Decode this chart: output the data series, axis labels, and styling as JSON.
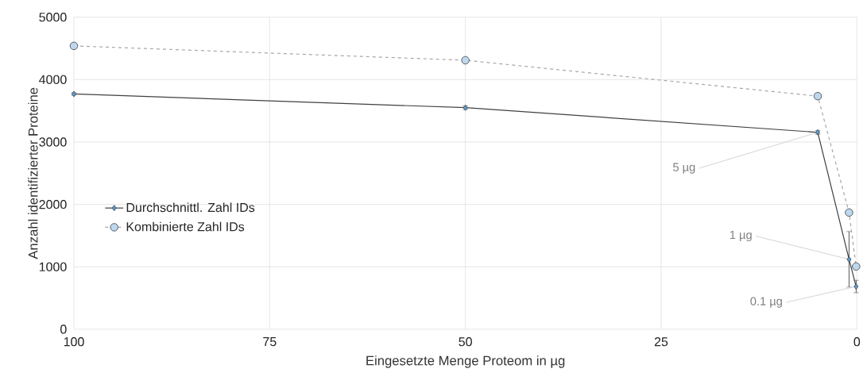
{
  "chart_data": {
    "type": "line",
    "xlabel": "Eingesetzte Menge Proteom in µg",
    "ylabel": "Anzahl identifizierter Proteine",
    "xlim": [
      100,
      0
    ],
    "xticks": [
      100,
      75,
      50,
      25,
      0
    ],
    "ylim": [
      0,
      5000
    ],
    "yticks": [
      0,
      1000,
      2000,
      3000,
      4000,
      5000
    ],
    "grid": true,
    "legend": "left",
    "series": [
      {
        "name": "Durchschnittl. Zahl IDs",
        "color": "#5b9bd5",
        "marker": "diamond",
        "line_style": "solid",
        "x": [
          100,
          50,
          5,
          1,
          0.1
        ],
        "values": [
          3770,
          3550,
          3155,
          1120,
          685
        ],
        "errors": [
          20,
          30,
          30,
          445,
          100
        ]
      },
      {
        "name": "Kombinierte Zahl IDs",
        "color": "#bdd7ee",
        "marker": "circle",
        "line_style": "dashed",
        "x": [
          100,
          50,
          5,
          1,
          0.1
        ],
        "values": [
          4540,
          4310,
          3735,
          1870,
          1005
        ]
      }
    ],
    "annotations": [
      {
        "text": "5 µg",
        "x": 5,
        "y": 3155
      },
      {
        "text": "1 µg",
        "x": 1,
        "y": 1120
      },
      {
        "text": "0.1 µg",
        "x": 0.1,
        "y": 685
      }
    ]
  }
}
